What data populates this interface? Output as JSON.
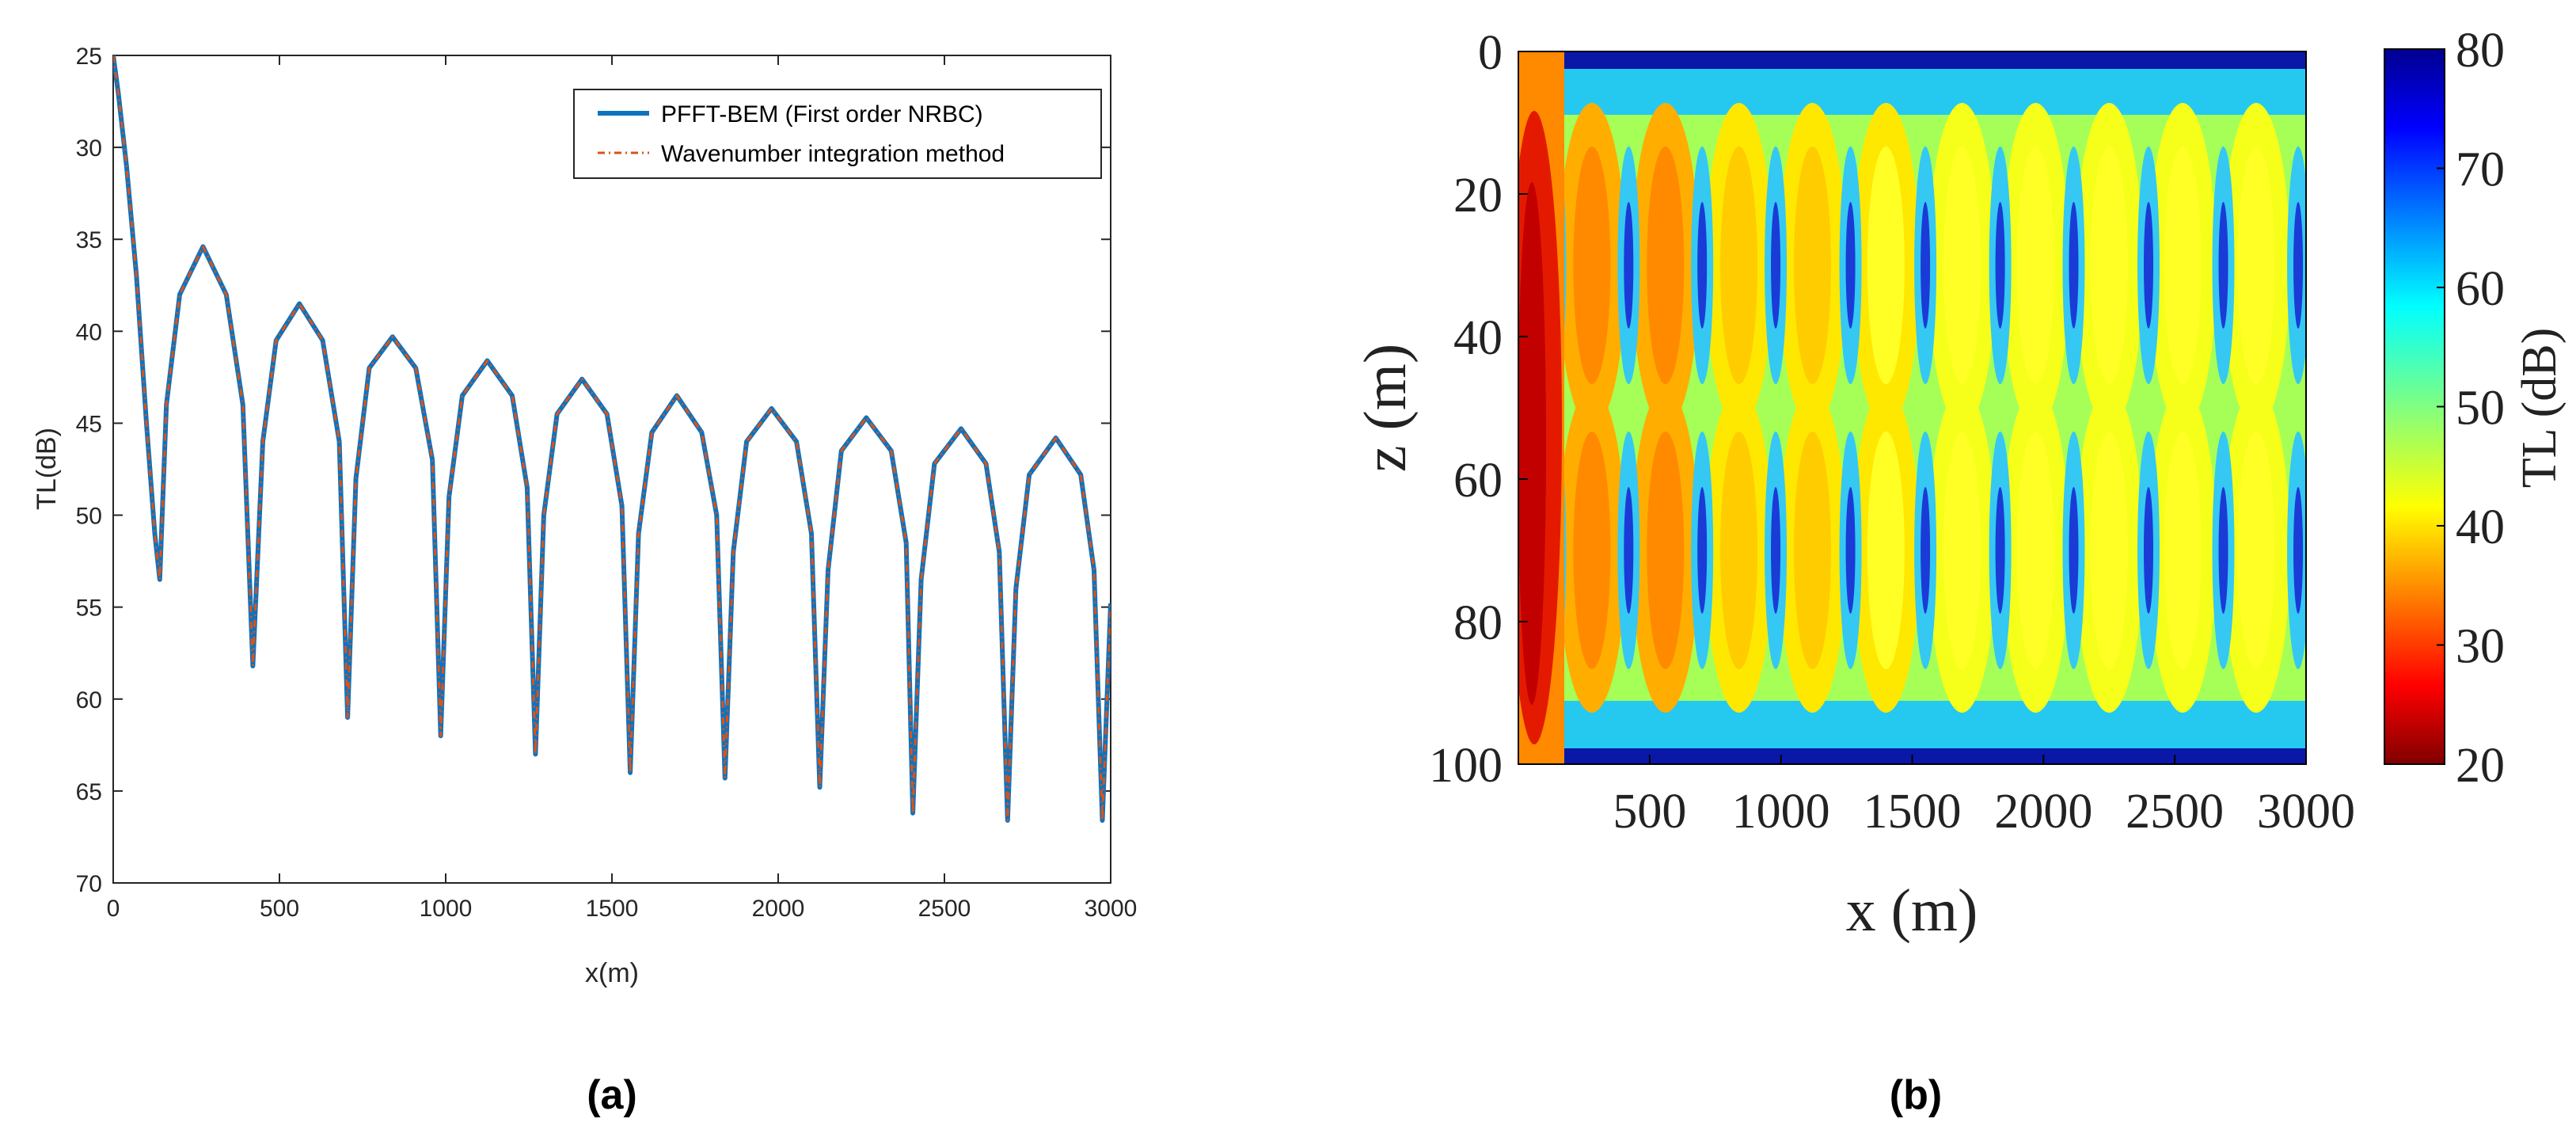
{
  "chart_data": [
    {
      "panel_label": "(a)",
      "type": "line",
      "title": "",
      "xlabel": "x(m)",
      "ylabel": "TL(dB)",
      "xlim": [
        0,
        3000
      ],
      "ylim": [
        25,
        70
      ],
      "y_reversed": true,
      "grid": false,
      "legend_position": "top-right",
      "xticks": [
        0,
        500,
        1000,
        1500,
        2000,
        2500,
        3000
      ],
      "yticks": [
        25,
        30,
        35,
        40,
        45,
        50,
        55,
        60,
        65,
        70
      ],
      "xtick_labels": [
        "0",
        "500",
        "1000",
        "1500",
        "2000",
        "2500",
        "3000"
      ],
      "ytick_labels": [
        "25",
        "30",
        "35",
        "40",
        "45",
        "50",
        "55",
        "60",
        "65",
        "70"
      ],
      "series": [
        {
          "name": "PFFT-BEM (First order NRBC)",
          "style": "solid",
          "color": "#0f72bd",
          "x": [
            0,
            15,
            40,
            70,
            100,
            125,
            140,
            160,
            200,
            270,
            340,
            390,
            420,
            450,
            490,
            560,
            630,
            680,
            705,
            730,
            770,
            840,
            910,
            960,
            985,
            1010,
            1050,
            1125,
            1200,
            1245,
            1270,
            1295,
            1335,
            1410,
            1485,
            1530,
            1555,
            1580,
            1620,
            1695,
            1770,
            1815,
            1840,
            1865,
            1905,
            1980,
            2055,
            2100,
            2125,
            2150,
            2190,
            2265,
            2340,
            2385,
            2405,
            2430,
            2470,
            2550,
            2625,
            2665,
            2690,
            2715,
            2755,
            2835,
            2910,
            2950,
            2975,
            3000
          ],
          "y": [
            25,
            27,
            31,
            37,
            45,
            51,
            53.5,
            44,
            38,
            35.4,
            38,
            44,
            58.2,
            46,
            40.5,
            38.5,
            40.5,
            46,
            61,
            48,
            42,
            40.3,
            42,
            47,
            62,
            49,
            43.5,
            41.6,
            43.5,
            48.5,
            63,
            50,
            44.5,
            42.6,
            44.5,
            49.5,
            64,
            51,
            45.5,
            43.5,
            45.5,
            50,
            64.3,
            52,
            46,
            44.2,
            46,
            51,
            64.8,
            53,
            46.5,
            44.7,
            46.5,
            51.5,
            66.2,
            53.5,
            47.2,
            45.3,
            47.2,
            52,
            66.6,
            54,
            47.8,
            45.8,
            47.8,
            53,
            66.6,
            54.8
          ]
        },
        {
          "name": "Wavenumber integration method",
          "style": "dashdot",
          "color": "#d95319"
        }
      ]
    },
    {
      "panel_label": "(b)",
      "type": "heatmap",
      "title": "",
      "xlabel": "x (m)",
      "ylabel": "z (m)",
      "xlim": [
        0,
        3000
      ],
      "ylim": [
        0,
        100
      ],
      "y_reversed": true,
      "xticks": [
        500,
        1000,
        1500,
        2000,
        2500,
        3000
      ],
      "yticks": [
        0,
        20,
        40,
        60,
        80,
        100
      ],
      "xtick_labels": [
        "500",
        "1000",
        "1500",
        "2000",
        "2500",
        "3000"
      ],
      "ytick_labels": [
        "0",
        "20",
        "40",
        "60",
        "80",
        "100"
      ],
      "colorbar": {
        "label": "TL (dB)",
        "range": [
          20,
          80
        ],
        "ticks": [
          20,
          30,
          40,
          50,
          60,
          70,
          80
        ],
        "tick_labels": [
          "20",
          "30",
          "40",
          "50",
          "60",
          "70",
          "80"
        ],
        "colormap": "jet",
        "colormap_reversed": true
      },
      "field_description_values": {
        "surface_tl_db": 78,
        "bottom_tl_db": 75,
        "near_source_min_tl_db": 30,
        "lobe_depths_m": [
          30,
          70
        ],
        "lobe_centers_x_m": [
          100,
          280,
          560,
          840,
          1120,
          1400,
          1690,
          1970,
          2250,
          2530,
          2810
        ],
        "interference_min_x_m": [
          140,
          420,
          700,
          980,
          1265,
          1550,
          1835,
          2115,
          2400,
          2685,
          2970
        ]
      }
    }
  ]
}
